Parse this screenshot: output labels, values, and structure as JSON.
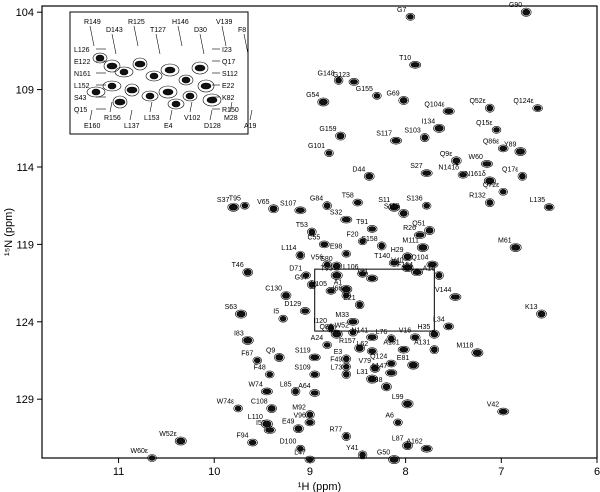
{
  "chart_data": {
    "type": "scatter",
    "xlabel": "¹H (ppm)",
    "ylabel": "¹⁵N (ppm)",
    "xlim": [
      11.8,
      6.0
    ],
    "ylim": [
      103.6,
      132.8
    ],
    "x_reversed": true,
    "y_reversed": true,
    "x_ticks": [
      11,
      10,
      9,
      8,
      7,
      6
    ],
    "y_ticks": [
      104,
      109,
      114,
      119,
      124,
      129
    ],
    "peaks": [
      {
        "label": "G7",
        "x": 7.95,
        "y": 104.3
      },
      {
        "label": "G90",
        "x": 6.74,
        "y": 104.0
      },
      {
        "label": "T10",
        "x": 7.9,
        "y": 107.4
      },
      {
        "label": "G148",
        "x": 8.7,
        "y": 108.4
      },
      {
        "label": "G123",
        "x": 8.54,
        "y": 108.5
      },
      {
        "label": "G54",
        "x": 8.86,
        "y": 109.8
      },
      {
        "label": "G155",
        "x": 8.3,
        "y": 109.4
      },
      {
        "label": "G69",
        "x": 8.02,
        "y": 109.7
      },
      {
        "label": "Q104ε",
        "x": 7.55,
        "y": 110.4
      },
      {
        "label": "Q52ε",
        "x": 7.12,
        "y": 110.2
      },
      {
        "label": "Q124ε",
        "x": 6.62,
        "y": 110.2
      },
      {
        "label": "I134",
        "x": 7.65,
        "y": 111.5
      },
      {
        "label": "Q15ε",
        "x": 7.05,
        "y": 111.6
      },
      {
        "label": "G159",
        "x": 8.68,
        "y": 112.0
      },
      {
        "label": "S117",
        "x": 8.1,
        "y": 112.3
      },
      {
        "label": "S103",
        "x": 7.8,
        "y": 112.1
      },
      {
        "label": "Q86ε",
        "x": 6.98,
        "y": 112.8
      },
      {
        "label": "Y89",
        "x": 6.8,
        "y": 113.0
      },
      {
        "label": "G101",
        "x": 8.8,
        "y": 113.1
      },
      {
        "label": "Q9ε",
        "x": 7.47,
        "y": 113.6
      },
      {
        "label": "W60",
        "x": 7.15,
        "y": 113.8
      },
      {
        "label": "Q17ε",
        "x": 6.78,
        "y": 114.6
      },
      {
        "label": "N141δ",
        "x": 7.4,
        "y": 114.5
      },
      {
        "label": "N161δ",
        "x": 7.12,
        "y": 114.9
      },
      {
        "label": "Q72ε",
        "x": 6.98,
        "y": 115.6
      },
      {
        "label": "D44",
        "x": 8.38,
        "y": 114.6
      },
      {
        "label": "S27",
        "x": 7.78,
        "y": 114.4
      },
      {
        "label": "R132",
        "x": 7.12,
        "y": 116.3
      },
      {
        "label": "L135",
        "x": 6.5,
        "y": 116.6
      },
      {
        "label": "S37",
        "x": 9.8,
        "y": 116.6
      },
      {
        "label": "T95",
        "x": 9.68,
        "y": 116.5
      },
      {
        "label": "V65",
        "x": 9.38,
        "y": 116.7
      },
      {
        "label": "S107",
        "x": 9.1,
        "y": 116.8
      },
      {
        "label": "G84",
        "x": 8.82,
        "y": 116.5
      },
      {
        "label": "T58",
        "x": 8.5,
        "y": 116.3
      },
      {
        "label": "S11",
        "x": 8.12,
        "y": 116.6
      },
      {
        "label": "S136",
        "x": 7.78,
        "y": 116.5
      },
      {
        "label": "S115",
        "x": 8.02,
        "y": 117.0
      },
      {
        "label": "S32",
        "x": 8.62,
        "y": 117.4
      },
      {
        "label": "T53",
        "x": 8.98,
        "y": 118.2
      },
      {
        "label": "T91",
        "x": 8.35,
        "y": 118.0
      },
      {
        "label": "M61",
        "x": 6.85,
        "y": 119.2
      },
      {
        "label": "F20",
        "x": 8.45,
        "y": 118.8
      },
      {
        "label": "Q51",
        "x": 7.75,
        "y": 118.1
      },
      {
        "label": "R26",
        "x": 7.85,
        "y": 118.4
      },
      {
        "label": "S158",
        "x": 8.25,
        "y": 119.1
      },
      {
        "label": "C55",
        "x": 8.85,
        "y": 119.0
      },
      {
        "label": "M111",
        "x": 7.82,
        "y": 119.2
      },
      {
        "label": "E98",
        "x": 8.62,
        "y": 119.6
      },
      {
        "label": "H29",
        "x": 7.98,
        "y": 119.8
      },
      {
        "label": "Q104",
        "x": 7.72,
        "y": 120.3
      },
      {
        "label": "L114",
        "x": 9.1,
        "y": 119.7
      },
      {
        "label": "T140",
        "x": 8.12,
        "y": 120.2
      },
      {
        "label": "V40",
        "x": 7.98,
        "y": 120.5
      },
      {
        "label": "V56",
        "x": 8.82,
        "y": 120.3
      },
      {
        "label": "S80",
        "x": 8.72,
        "y": 120.4
      },
      {
        "label": "F154",
        "x": 7.88,
        "y": 120.8
      },
      {
        "label": "A18",
        "x": 7.65,
        "y": 121.0
      },
      {
        "label": "L106",
        "x": 8.45,
        "y": 120.9
      },
      {
        "label": "T93",
        "x": 8.72,
        "y": 121.0
      },
      {
        "label": "D71",
        "x": 9.04,
        "y": 121.0
      },
      {
        "label": "T46",
        "x": 9.65,
        "y": 120.8
      },
      {
        "label": "T21",
        "x": 8.35,
        "y": 121.2
      },
      {
        "label": "G97",
        "x": 8.98,
        "y": 121.6
      },
      {
        "label": "Y105",
        "x": 8.78,
        "y": 122.0
      },
      {
        "label": "A1",
        "x": 8.62,
        "y": 121.9
      },
      {
        "label": "I66",
        "x": 8.62,
        "y": 122.3
      },
      {
        "label": "C130",
        "x": 9.25,
        "y": 122.3
      },
      {
        "label": "V144",
        "x": 7.48,
        "y": 122.4
      },
      {
        "label": "E21",
        "x": 8.48,
        "y": 122.9
      },
      {
        "label": "D129",
        "x": 9.05,
        "y": 123.3
      },
      {
        "label": "S63",
        "x": 9.72,
        "y": 123.5
      },
      {
        "label": "I5",
        "x": 9.28,
        "y": 123.8
      },
      {
        "label": "K13",
        "x": 6.58,
        "y": 123.5
      },
      {
        "label": "M33",
        "x": 8.55,
        "y": 124.0
      },
      {
        "label": "I120",
        "x": 8.78,
        "y": 124.4
      },
      {
        "label": "L34",
        "x": 7.55,
        "y": 124.3
      },
      {
        "label": "Q86",
        "x": 8.72,
        "y": 124.8
      },
      {
        "label": "W52",
        "x": 8.55,
        "y": 124.7
      },
      {
        "label": "H35",
        "x": 7.7,
        "y": 124.8
      },
      {
        "label": "N141",
        "x": 8.35,
        "y": 125.0
      },
      {
        "label": "L76",
        "x": 8.15,
        "y": 125.1
      },
      {
        "label": "V16",
        "x": 7.9,
        "y": 125.0
      },
      {
        "label": "I83",
        "x": 9.65,
        "y": 125.2
      },
      {
        "label": "A24",
        "x": 8.82,
        "y": 125.5
      },
      {
        "label": "R157",
        "x": 8.48,
        "y": 125.7
      },
      {
        "label": "A151",
        "x": 8.02,
        "y": 125.8
      },
      {
        "label": "A131",
        "x": 7.7,
        "y": 125.8
      },
      {
        "label": "L62",
        "x": 8.35,
        "y": 125.9
      },
      {
        "label": "M118",
        "x": 7.25,
        "y": 126.0
      },
      {
        "label": "F67",
        "x": 9.55,
        "y": 126.5
      },
      {
        "label": "Q9",
        "x": 9.32,
        "y": 126.3
      },
      {
        "label": "S119",
        "x": 8.95,
        "y": 126.3
      },
      {
        "label": "E3",
        "x": 8.62,
        "y": 126.4
      },
      {
        "label": "Q124",
        "x": 8.15,
        "y": 126.7
      },
      {
        "label": "E81",
        "x": 7.92,
        "y": 126.8
      },
      {
        "label": "F49",
        "x": 8.62,
        "y": 126.9
      },
      {
        "label": "V79",
        "x": 8.32,
        "y": 127.0
      },
      {
        "label": "A147",
        "x": 8.15,
        "y": 127.3
      },
      {
        "label": "L73",
        "x": 8.62,
        "y": 127.4
      },
      {
        "label": "S109",
        "x": 8.95,
        "y": 127.4
      },
      {
        "label": "L31",
        "x": 8.35,
        "y": 127.7
      },
      {
        "label": "F48",
        "x": 9.42,
        "y": 127.4
      },
      {
        "label": "M38",
        "x": 8.2,
        "y": 128.2
      },
      {
        "label": "W74",
        "x": 9.45,
        "y": 128.5
      },
      {
        "label": "L85",
        "x": 9.15,
        "y": 128.5
      },
      {
        "label": "A64",
        "x": 8.95,
        "y": 128.6
      },
      {
        "label": "L99",
        "x": 7.98,
        "y": 129.3
      },
      {
        "label": "W74ε",
        "x": 9.75,
        "y": 129.6
      },
      {
        "label": "C108",
        "x": 9.4,
        "y": 129.6
      },
      {
        "label": "V42",
        "x": 6.98,
        "y": 129.8
      },
      {
        "label": "M92",
        "x": 9.0,
        "y": 130.0
      },
      {
        "label": "V96",
        "x": 9.0,
        "y": 130.5
      },
      {
        "label": "L110",
        "x": 9.45,
        "y": 130.6
      },
      {
        "label": "A6",
        "x": 8.08,
        "y": 130.5
      },
      {
        "label": "E49",
        "x": 9.12,
        "y": 130.9
      },
      {
        "label": "I57",
        "x": 9.42,
        "y": 131.0
      },
      {
        "label": "R77",
        "x": 8.62,
        "y": 131.4
      },
      {
        "label": "F94",
        "x": 9.6,
        "y": 131.8
      },
      {
        "label": "W52ε",
        "x": 10.35,
        "y": 131.7
      },
      {
        "label": "D100",
        "x": 9.1,
        "y": 132.2
      },
      {
        "label": "L87",
        "x": 7.98,
        "y": 132.0
      },
      {
        "label": "A162",
        "x": 7.78,
        "y": 132.2
      },
      {
        "label": "Y41",
        "x": 8.45,
        "y": 132.6
      },
      {
        "label": "L47",
        "x": 9.0,
        "y": 132.9
      },
      {
        "label": "G50",
        "x": 8.12,
        "y": 132.9
      },
      {
        "label": "W60ε",
        "x": 10.65,
        "y": 132.8
      }
    ],
    "inset": {
      "labels": [
        "R149",
        "D143",
        "R125",
        "T127",
        "H146",
        "D30",
        "V139",
        "F8",
        "L126",
        "E122",
        "N161",
        "L152",
        "S43",
        "Q15",
        "I23",
        "Q17",
        "S112",
        "E22",
        "K82",
        "R150",
        "E160",
        "R156",
        "L137",
        "L153",
        "E4",
        "V102",
        "D128",
        "M28",
        "A19"
      ]
    }
  }
}
